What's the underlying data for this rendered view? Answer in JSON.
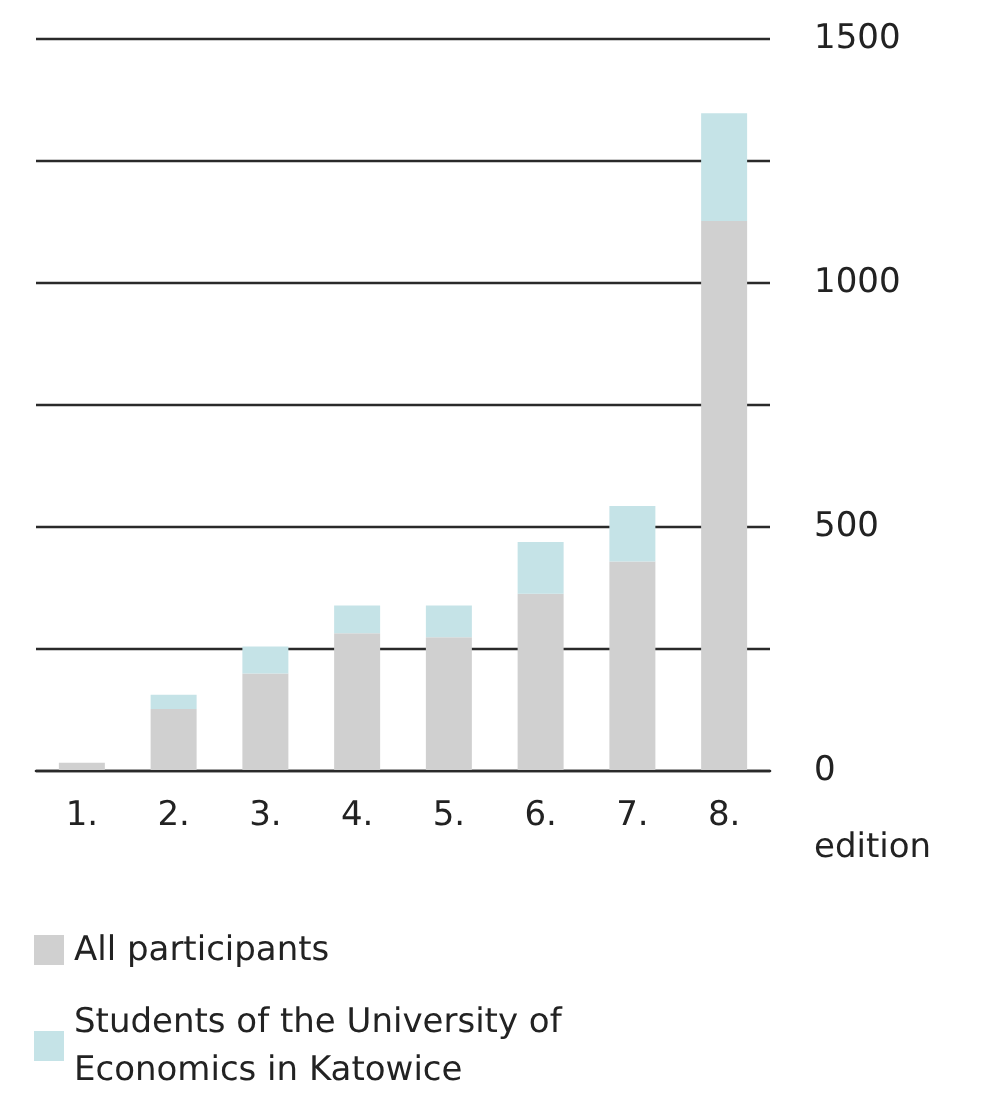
{
  "chart_data": {
    "type": "bar",
    "stacked": true,
    "xlabel": "edition",
    "categories": [
      "1.",
      "2.",
      "3.",
      "4.",
      "5.",
      "6.",
      "7.",
      "8."
    ],
    "series": [
      {
        "name": "All participants",
        "color": "#d0d0d0",
        "values": [
          15,
          125,
          198,
          280,
          272,
          361,
          427,
          1125
        ]
      },
      {
        "name": "Students of the University of Economics in Katowice",
        "color": "#c5e3e7",
        "values": [
          null,
          29,
          55,
          57,
          65,
          106,
          114,
          221
        ]
      }
    ],
    "ylim": [
      0,
      1500
    ],
    "yticks": [
      0,
      {
        "value": 250,
        "label": null
      },
      500,
      {
        "value": 750,
        "label": null
      },
      1000,
      {
        "value": 1250,
        "label": null
      },
      1500
    ],
    "grid": "y",
    "legend": "bottom left"
  }
}
